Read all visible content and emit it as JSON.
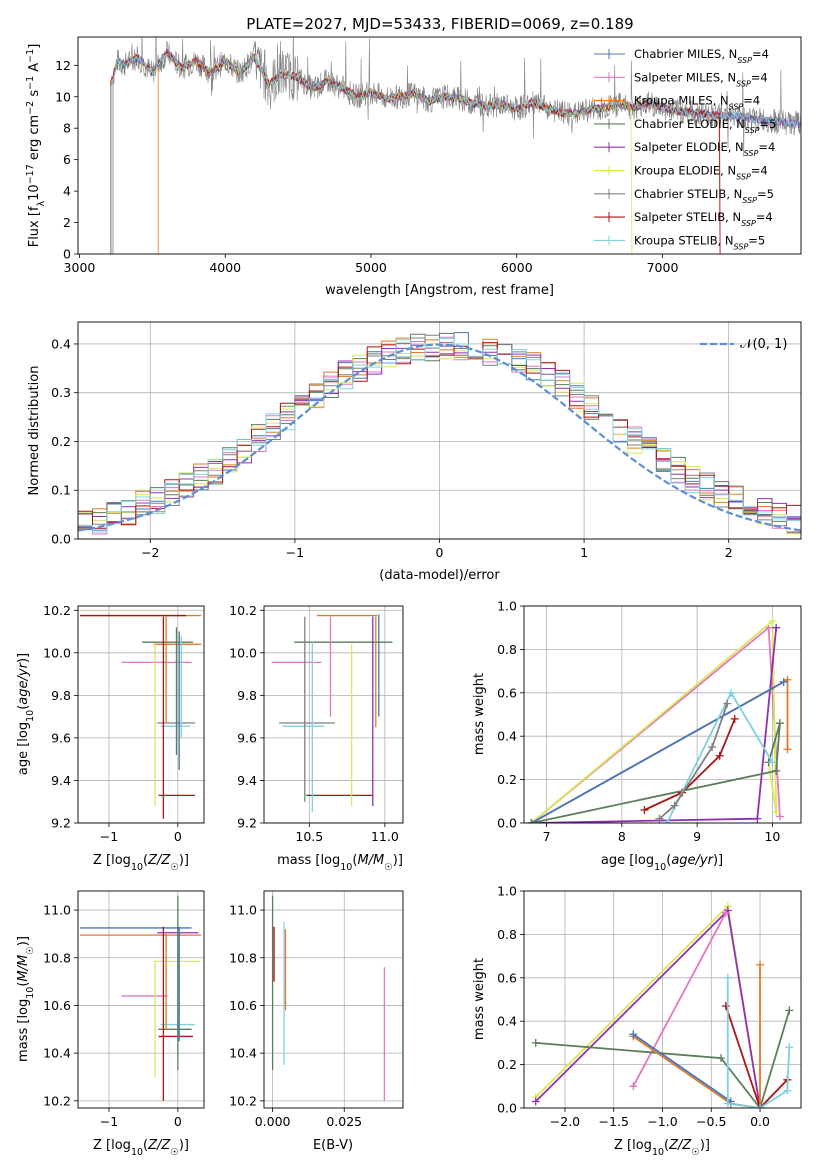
{
  "figure": {
    "title": "PLATE=2027, MJD=53433, FIBERID=0069, z=0.189"
  },
  "series_styles": [
    {
      "name": "Chabrier MILES",
      "nssp": "4",
      "color": "#4477bb"
    },
    {
      "name": "Salpeter MILES",
      "nssp": "4",
      "color": "#e377c2"
    },
    {
      "name": "Kroupa MILES",
      "nssp": "4",
      "color": "#e07a2a"
    },
    {
      "name": "Chabrier ELODIE",
      "nssp": "5",
      "color": "#5a7d5a"
    },
    {
      "name": "Salpeter ELODIE",
      "nssp": "4",
      "color": "#9030b0"
    },
    {
      "name": "Kroupa ELODIE",
      "nssp": "4",
      "color": "#d8e85a"
    },
    {
      "name": "Chabrier STELIB",
      "nssp": "5",
      "color": "#808080"
    },
    {
      "name": "Salpeter STELIB",
      "nssp": "4",
      "color": "#aa1515"
    },
    {
      "name": "Kroupa STELIB",
      "nssp": "5",
      "color": "#7fd0e0"
    }
  ],
  "chart_data": [
    {
      "id": "spectrum",
      "type": "line",
      "xlabel": "wavelength [Angstrom, rest frame]",
      "ylabel_main": "Flux [f",
      "ylabel_sub": "λ",
      "ylabel_mid": "10",
      "ylabel_sup": "−17",
      "ylabel_tail": " erg cm",
      "ylabel_sup2": "−2",
      "ylabel_tail2": " s",
      "ylabel_sup3": "−1",
      "ylabel_tail3": " A",
      "ylabel_sup4": "−1",
      "ylabel_end": "]",
      "xlim": [
        2990,
        7950
      ],
      "ylim": [
        0,
        13.8
      ],
      "xticks": [
        3000,
        4000,
        5000,
        6000,
        7000
      ],
      "yticks": [
        0,
        2,
        4,
        6,
        8,
        10,
        12
      ],
      "legend_position": "right",
      "continuum_points": [
        [
          3215,
          10.8
        ],
        [
          3260,
          12.3
        ],
        [
          3300,
          12.0
        ],
        [
          3400,
          12.5
        ],
        [
          3500,
          11.5
        ],
        [
          3600,
          12.8
        ],
        [
          3700,
          11.8
        ],
        [
          3800,
          12.3
        ],
        [
          3900,
          11.5
        ],
        [
          4000,
          12.3
        ],
        [
          4100,
          11.5
        ],
        [
          4200,
          12.5
        ],
        [
          4300,
          10.8
        ],
        [
          4400,
          11.5
        ],
        [
          4500,
          11.2
        ],
        [
          4600,
          10.5
        ],
        [
          4700,
          11.0
        ],
        [
          4800,
          10.6
        ],
        [
          4900,
          10.0
        ],
        [
          5000,
          10.3
        ],
        [
          5100,
          9.9
        ],
        [
          5200,
          10.0
        ],
        [
          5300,
          10.2
        ],
        [
          5400,
          9.7
        ],
        [
          5500,
          10.0
        ],
        [
          5600,
          9.9
        ],
        [
          5700,
          9.6
        ],
        [
          5800,
          9.4
        ],
        [
          5900,
          9.5
        ],
        [
          6000,
          9.2
        ],
        [
          6100,
          9.6
        ],
        [
          6200,
          9.3
        ],
        [
          6300,
          9.0
        ],
        [
          6400,
          8.9
        ],
        [
          6500,
          9.2
        ],
        [
          6600,
          9.3
        ],
        [
          6700,
          9.5
        ],
        [
          6800,
          9.3
        ],
        [
          6900,
          9.6
        ],
        [
          7000,
          9.3
        ],
        [
          7100,
          9.1
        ],
        [
          7200,
          9.0
        ],
        [
          7300,
          8.9
        ],
        [
          7400,
          8.8
        ],
        [
          7500,
          8.8
        ],
        [
          7600,
          8.6
        ],
        [
          7700,
          8.5
        ],
        [
          7800,
          8.4
        ],
        [
          7900,
          8.3
        ]
      ],
      "model_starts": [
        3215,
        3215,
        3540,
        3215,
        3215,
        3215,
        3230,
        3215,
        3215
      ],
      "model_ends": [
        7950,
        7950,
        7395,
        7950,
        7950,
        6790,
        7950,
        7395,
        7950
      ]
    },
    {
      "id": "residuals",
      "type": "bar",
      "xlabel": "(data-model)/error",
      "ylabel": "Normed distribution",
      "xlim": [
        -2.5,
        2.5
      ],
      "ylim": [
        0,
        0.445
      ],
      "xticks": [
        -2,
        -1,
        0,
        1,
        2
      ],
      "yticks": [
        0.0,
        0.1,
        0.2,
        0.3,
        0.4
      ],
      "legend_label": "𝒩(0, 1)",
      "legend_position": "top-right",
      "bin_width": 0.1,
      "hist_base": [
        0.035,
        0.04,
        0.048,
        0.058,
        0.068,
        0.08,
        0.094,
        0.108,
        0.125,
        0.142,
        0.163,
        0.184,
        0.206,
        0.228,
        0.25,
        0.272,
        0.294,
        0.316,
        0.336,
        0.352,
        0.366,
        0.378,
        0.386,
        0.392,
        0.395,
        0.397,
        0.395,
        0.392,
        0.386,
        0.378,
        0.366,
        0.352,
        0.336,
        0.316,
        0.294,
        0.272,
        0.25,
        0.228,
        0.206,
        0.184,
        0.163,
        0.142,
        0.125,
        0.108,
        0.094,
        0.08,
        0.068,
        0.058,
        0.048,
        0.04
      ]
    },
    {
      "id": "age-vs-z",
      "type": "scatter",
      "xlabel": "Z [log",
      "xlabel_sub": "10",
      "xlabel_tail": "(Z/Z",
      "xlabel_sub2": "☉",
      "xlabel_end": ")]",
      "ylabel": "age  [log",
      "ylabel_sub": "10",
      "ylabel_tail": "(age/yr)]",
      "xlim": [
        -1.45,
        0.38
      ],
      "ylim": [
        9.2,
        10.22
      ],
      "xticks": [
        -1,
        0
      ],
      "yticks": [
        9.2,
        9.4,
        9.6,
        9.8,
        10.0,
        10.2
      ],
      "hlines": [
        {
          "s": 2,
          "y": 10.175,
          "x0": -1.42,
          "x1": 0.34
        },
        {
          "s": 7,
          "y": 10.175,
          "x0": -1.42,
          "x1": 0.12
        },
        {
          "s": 3,
          "y": 10.05,
          "x0": -0.52,
          "x1": 0.22
        },
        {
          "s": 2,
          "y": 10.04,
          "x0": -0.35,
          "x1": 0.34
        },
        {
          "s": 1,
          "y": 9.955,
          "x0": -0.82,
          "x1": 0.2
        },
        {
          "s": 6,
          "y": 9.67,
          "x0": -0.3,
          "x1": 0.25
        },
        {
          "s": 7,
          "y": 9.33,
          "x0": -0.28,
          "x1": 0.25
        },
        {
          "s": 8,
          "y": 9.655,
          "x0": -0.25,
          "x1": 0.18
        }
      ],
      "vlines": [
        {
          "s": 5,
          "x": -0.33,
          "y0": 9.28,
          "y1": 10.04
        },
        {
          "s": 7,
          "x": -0.21,
          "y0": 9.22,
          "y1": 10.17
        },
        {
          "s": 2,
          "x": -0.17,
          "y0": 9.67,
          "y1": 10.17
        },
        {
          "s": 3,
          "x": -0.02,
          "y0": 9.52,
          "y1": 10.12
        },
        {
          "s": 0,
          "x": 0.02,
          "y0": 9.45,
          "y1": 10.1
        },
        {
          "s": 8,
          "x": 0.05,
          "y0": 9.6,
          "y1": 10.08
        }
      ]
    },
    {
      "id": "age-vs-mass",
      "type": "scatter",
      "xlabel": "mass [log",
      "xlabel_sub": "10",
      "xlabel_tail": "(M/M",
      "xlabel_sub2": "☉",
      "xlabel_end": ")]",
      "xlim": [
        10.2,
        11.12
      ],
      "ylim": [
        9.2,
        10.22
      ],
      "xticks": [
        10.5,
        11.0
      ],
      "yticks": [
        9.2,
        9.4,
        9.6,
        9.8,
        10.0,
        10.2
      ],
      "hlines": [
        {
          "s": 2,
          "y": 10.175,
          "x0": 10.55,
          "x1": 10.95
        },
        {
          "s": 3,
          "y": 10.05,
          "x0": 10.4,
          "x1": 11.05
        },
        {
          "s": 1,
          "y": 9.955,
          "x0": 10.25,
          "x1": 10.58
        },
        {
          "s": 6,
          "y": 9.67,
          "x0": 10.3,
          "x1": 10.67
        },
        {
          "s": 7,
          "y": 9.33,
          "x0": 10.48,
          "x1": 10.92
        },
        {
          "s": 8,
          "y": 9.655,
          "x0": 10.32,
          "x1": 10.6
        }
      ],
      "vlines": [
        {
          "s": 6,
          "x": 10.47,
          "y0": 9.3,
          "y1": 10.17
        },
        {
          "s": 8,
          "x": 10.52,
          "y0": 9.25,
          "y1": 10.05
        },
        {
          "s": 1,
          "x": 10.64,
          "y0": 9.7,
          "y1": 10.17
        },
        {
          "s": 5,
          "x": 10.78,
          "y0": 9.28,
          "y1": 10.04
        },
        {
          "s": 4,
          "x": 10.92,
          "y0": 9.28,
          "y1": 10.17
        },
        {
          "s": 2,
          "x": 10.94,
          "y0": 9.65,
          "y1": 10.17
        },
        {
          "s": 0,
          "x": 10.96,
          "y0": 9.7,
          "y1": 10.18
        }
      ]
    },
    {
      "id": "weight-vs-age",
      "type": "line",
      "xlabel": "age  [log",
      "xlabel_sub": "10",
      "xlabel_tail": "(age/yr)]",
      "ylabel": "mass weight",
      "xlim": [
        6.7,
        10.38
      ],
      "ylim": [
        0,
        1.0
      ],
      "xticks": [
        7,
        8,
        9,
        10
      ],
      "yticks": [
        0.0,
        0.2,
        0.4,
        0.6,
        0.8,
        1.0
      ],
      "polylines": [
        {
          "s": 1,
          "pts": [
            [
              6.8,
              0.0
            ],
            [
              9.95,
              0.9
            ],
            [
              10.1,
              0.03
            ]
          ]
        },
        {
          "s": 5,
          "pts": [
            [
              6.8,
              0.0
            ],
            [
              10.0,
              0.93
            ],
            [
              10.05,
              0.05
            ],
            [
              9.95,
              0.28
            ]
          ]
        },
        {
          "s": 4,
          "pts": [
            [
              6.8,
              0.0
            ],
            [
              9.8,
              0.02
            ],
            [
              10.05,
              0.9
            ]
          ]
        },
        {
          "s": 2,
          "pts": [
            [
              6.8,
              0.0
            ],
            [
              10.2,
              0.66
            ],
            [
              10.2,
              0.34
            ]
          ]
        },
        {
          "s": 0,
          "pts": [
            [
              6.8,
              0.0
            ],
            [
              10.15,
              0.65
            ]
          ]
        },
        {
          "s": 3,
          "pts": [
            [
              6.8,
              0.0
            ],
            [
              10.05,
              0.24
            ],
            [
              10.1,
              0.46
            ],
            [
              9.95,
              0.28
            ]
          ]
        },
        {
          "s": 7,
          "pts": [
            [
              8.3,
              0.06
            ],
            [
              8.8,
              0.14
            ],
            [
              9.3,
              0.31
            ],
            [
              9.5,
              0.48
            ]
          ]
        },
        {
          "s": 8,
          "pts": [
            [
              8.6,
              0.0
            ],
            [
              9.45,
              0.6
            ],
            [
              10.0,
              0.28
            ]
          ]
        },
        {
          "s": 6,
          "pts": [
            [
              8.5,
              0.02
            ],
            [
              8.7,
              0.08
            ],
            [
              9.2,
              0.35
            ],
            [
              9.4,
              0.55
            ]
          ]
        }
      ]
    },
    {
      "id": "mass-vs-z",
      "type": "scatter",
      "xlabel": "Z [log",
      "xlabel_sub": "10",
      "xlabel_tail": "(Z/Z",
      "xlabel_sub2": "☉",
      "xlabel_end": ")]",
      "ylabel": "mass [log",
      "ylabel_sub": "10",
      "ylabel_tail": "(M/M",
      "ylabel_sub2": "☉",
      "ylabel_end": ")]",
      "xlim": [
        -1.45,
        0.38
      ],
      "ylim": [
        10.17,
        11.08
      ],
      "xticks": [
        -1,
        0
      ],
      "yticks": [
        10.2,
        10.4,
        10.6,
        10.8,
        11.0
      ],
      "hlines": [
        {
          "s": 0,
          "y": 10.925,
          "x0": -1.42,
          "x1": 0.2
        },
        {
          "s": 4,
          "y": 10.905,
          "x0": -0.3,
          "x1": 0.3
        },
        {
          "s": 2,
          "y": 10.895,
          "x0": -1.42,
          "x1": 0.34
        },
        {
          "s": 5,
          "y": 10.785,
          "x0": -0.35,
          "x1": 0.33
        },
        {
          "s": 1,
          "y": 10.64,
          "x0": -0.82,
          "x1": -0.15
        },
        {
          "s": 8,
          "y": 10.52,
          "x0": -0.25,
          "x1": 0.25
        },
        {
          "s": 3,
          "y": 10.5,
          "x0": -0.28,
          "x1": 0.2
        },
        {
          "s": 7,
          "y": 10.47,
          "x0": -0.28,
          "x1": 0.22
        }
      ],
      "vlines": [
        {
          "s": 5,
          "x": -0.33,
          "y0": 10.3,
          "y1": 10.78
        },
        {
          "s": 2,
          "x": -0.17,
          "y0": 10.5,
          "y1": 10.9
        },
        {
          "s": 7,
          "x": -0.21,
          "y0": 10.2,
          "y1": 10.93
        },
        {
          "s": 3,
          "x": 0.0,
          "y0": 10.33,
          "y1": 11.06
        },
        {
          "s": 0,
          "x": 0.02,
          "y0": 10.45,
          "y1": 10.93
        }
      ]
    },
    {
      "id": "mass-vs-ebv",
      "type": "scatter",
      "xlabel": "E(B-V)",
      "xlim": [
        -0.003,
        0.0455
      ],
      "ylim": [
        10.17,
        11.08
      ],
      "xticks": [
        0.0,
        0.025
      ],
      "xtick_labels": [
        "0.000",
        "0.025"
      ],
      "yticks": [
        10.2,
        10.4,
        10.6,
        10.8,
        11.0
      ],
      "vlines": [
        {
          "s": 3,
          "x": 0.0,
          "y0": 10.33,
          "y1": 11.06
        },
        {
          "s": 7,
          "x": 0.0005,
          "y0": 10.7,
          "y1": 10.93
        },
        {
          "s": 8,
          "x": 0.004,
          "y0": 10.35,
          "y1": 10.95
        },
        {
          "s": 2,
          "x": 0.0045,
          "y0": 10.58,
          "y1": 10.92
        },
        {
          "s": 1,
          "x": 0.039,
          "y0": 10.2,
          "y1": 10.76
        }
      ]
    },
    {
      "id": "weight-vs-z",
      "type": "line",
      "xlabel": "Z [log",
      "xlabel_sub": "10",
      "xlabel_tail": "(Z/Z",
      "xlabel_sub2": "☉",
      "xlabel_end": ")]",
      "ylabel": "mass weight",
      "xlim": [
        -2.42,
        0.42
      ],
      "ylim": [
        0,
        1.0
      ],
      "xticks": [
        -2.0,
        -1.5,
        -1.0,
        -0.5,
        0.0
      ],
      "yticks": [
        0.0,
        0.2,
        0.4,
        0.6,
        0.8,
        1.0
      ],
      "polylines": [
        {
          "s": 5,
          "pts": [
            [
              -2.3,
              0.05
            ],
            [
              -0.33,
              0.93
            ],
            [
              0.0,
              0.0
            ]
          ]
        },
        {
          "s": 4,
          "pts": [
            [
              -2.3,
              0.03
            ],
            [
              -0.33,
              0.91
            ],
            [
              0.0,
              0.0
            ]
          ]
        },
        {
          "s": 1,
          "pts": [
            [
              -1.3,
              0.1
            ],
            [
              -0.35,
              0.9
            ]
          ]
        },
        {
          "s": 3,
          "pts": [
            [
              -2.3,
              0.3
            ],
            [
              -0.4,
              0.23
            ],
            [
              0.0,
              0.0
            ],
            [
              0.3,
              0.45
            ]
          ]
        },
        {
          "s": 2,
          "pts": [
            [
              -1.3,
              0.33
            ],
            [
              -0.3,
              0.02
            ],
            [
              0.0,
              0.0
            ],
            [
              0.0,
              0.66
            ]
          ]
        },
        {
          "s": 0,
          "pts": [
            [
              -1.3,
              0.34
            ],
            [
              -0.3,
              0.03
            ]
          ]
        },
        {
          "s": 7,
          "pts": [
            [
              -0.35,
              0.47
            ],
            [
              0.0,
              0.0
            ],
            [
              0.28,
              0.13
            ]
          ]
        },
        {
          "s": 8,
          "pts": [
            [
              -0.33,
              0.6
            ],
            [
              -0.33,
              0.02
            ],
            [
              0.0,
              0.0
            ],
            [
              0.28,
              0.08
            ],
            [
              0.3,
              0.28
            ]
          ]
        }
      ]
    }
  ]
}
